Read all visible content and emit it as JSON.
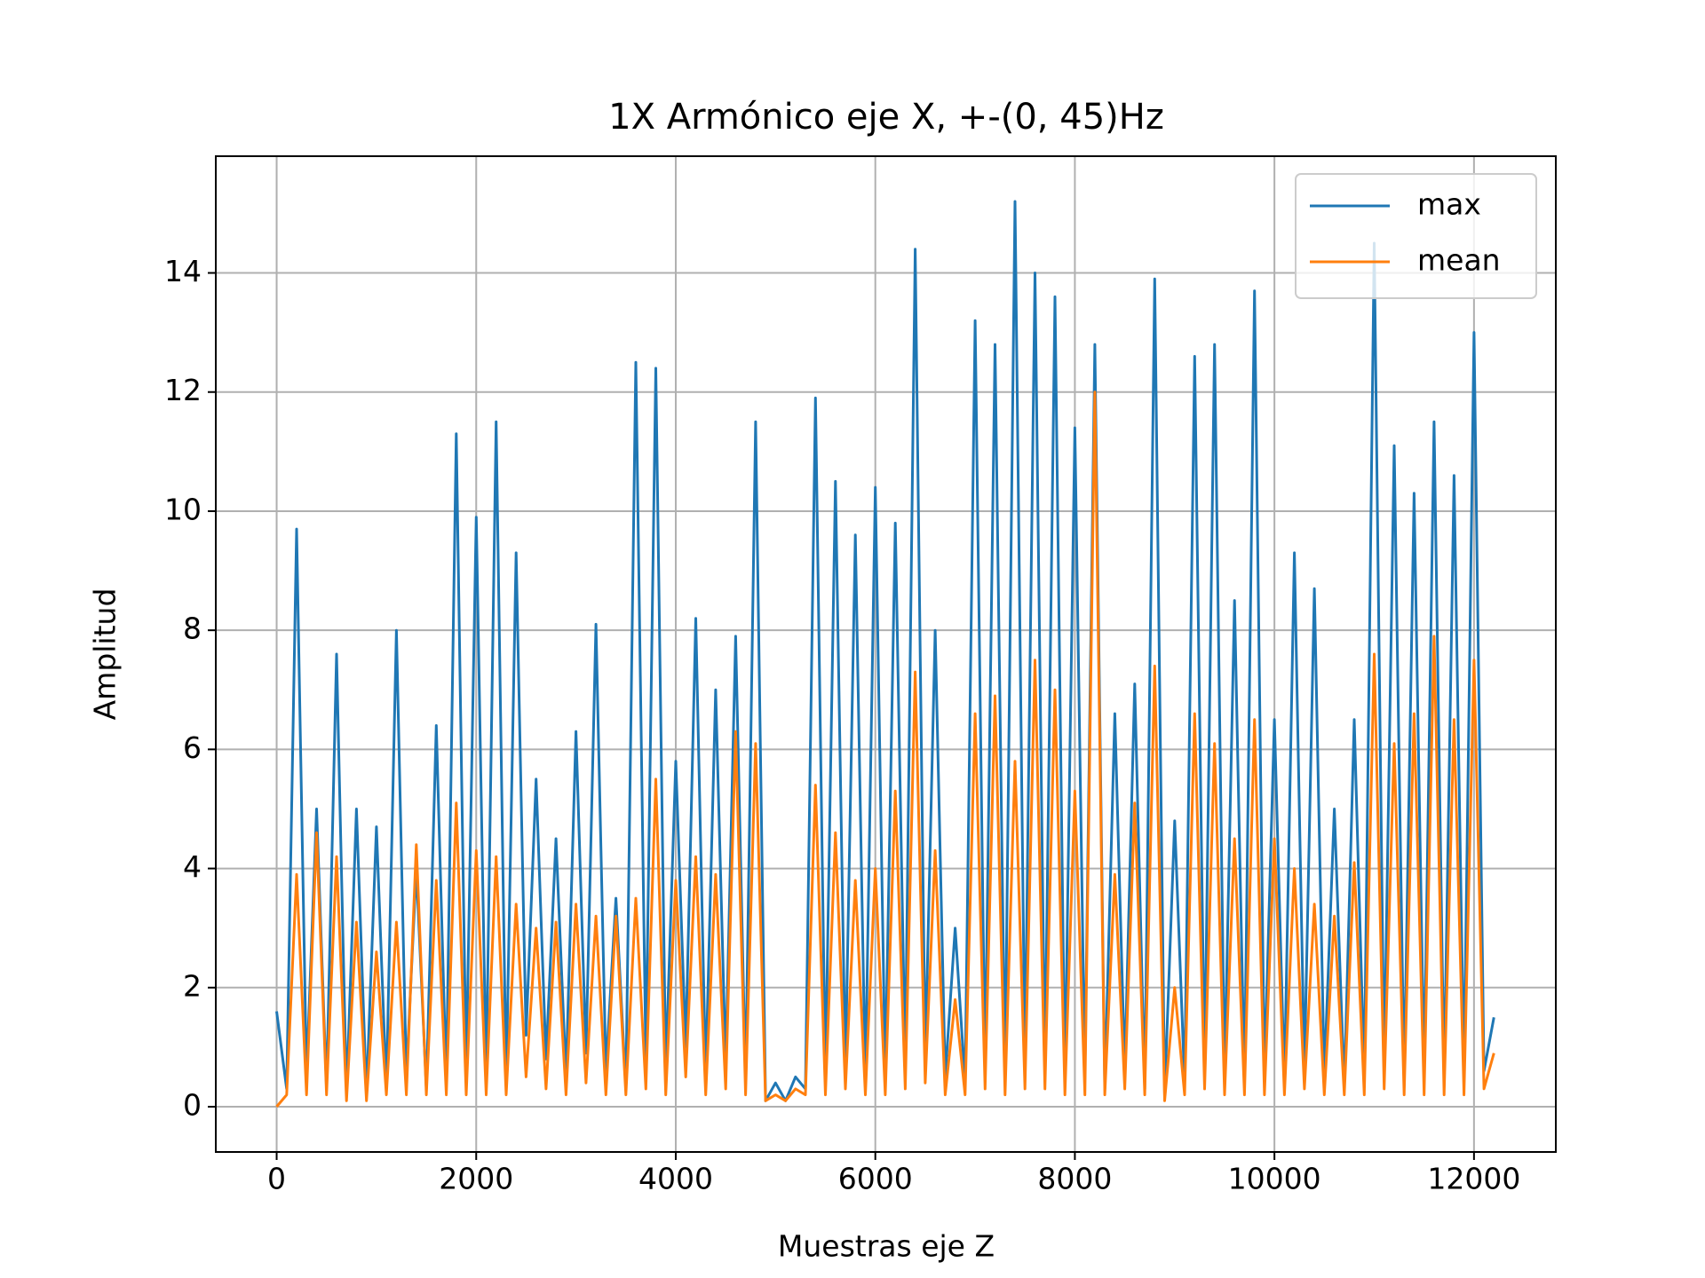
{
  "chart_data": {
    "type": "line",
    "title": "1X Armónico eje X, +-(0, 45)Hz",
    "xlabel": "Muestras eje Z",
    "ylabel": "Amplitud",
    "x": [
      0,
      100,
      200,
      300,
      400,
      500,
      600,
      700,
      800,
      900,
      1000,
      1100,
      1200,
      1300,
      1400,
      1500,
      1600,
      1700,
      1800,
      1900,
      2000,
      2100,
      2200,
      2300,
      2400,
      2500,
      2600,
      2700,
      2800,
      2900,
      3000,
      3100,
      3200,
      3300,
      3400,
      3500,
      3600,
      3700,
      3800,
      3900,
      4000,
      4100,
      4200,
      4300,
      4400,
      4500,
      4600,
      4700,
      4800,
      4900,
      5000,
      5100,
      5200,
      5300,
      5400,
      5500,
      5600,
      5700,
      5800,
      5900,
      6000,
      6100,
      6200,
      6300,
      6400,
      6500,
      6600,
      6700,
      6800,
      6900,
      7000,
      7100,
      7200,
      7300,
      7400,
      7500,
      7600,
      7700,
      7800,
      7900,
      8000,
      8100,
      8200,
      8300,
      8400,
      8500,
      8600,
      8700,
      8800,
      8900,
      9000,
      9100,
      9200,
      9300,
      9400,
      9500,
      9600,
      9700,
      9800,
      9900,
      10000,
      10100,
      10200,
      10300,
      10400,
      10500,
      10600,
      10700,
      10800,
      10900,
      11000,
      11100,
      11200,
      11300,
      11400,
      11500,
      11600,
      11700,
      11800,
      11900,
      12000,
      12100,
      12200
    ],
    "series": [
      {
        "name": "max",
        "color": "#1f77b4",
        "values": [
          1.6,
          0.3,
          9.7,
          0.5,
          5,
          0.3,
          7.6,
          0.2,
          5,
          0.2,
          4.7,
          0.3,
          8,
          0.5,
          4,
          0.3,
          6.4,
          0.4,
          11.3,
          0.6,
          9.9,
          0.5,
          11.5,
          0.4,
          9.3,
          1.2,
          5.5,
          0.8,
          4.5,
          0.5,
          6.3,
          0.9,
          8.1,
          0.6,
          3.5,
          0.3,
          12.5,
          0.8,
          12.4,
          0.6,
          5.8,
          1.0,
          8.2,
          0.5,
          7,
          0.7,
          7.9,
          0.4,
          11.5,
          0.1,
          0.4,
          0.1,
          0.5,
          0.3,
          11.9,
          0.5,
          10.5,
          0.6,
          9.6,
          0.4,
          10.4,
          0.5,
          9.8,
          0.7,
          14.4,
          0.8,
          8,
          0.5,
          3,
          0.4,
          13.2,
          0.6,
          12.8,
          0.5,
          15.2,
          0.7,
          14,
          0.6,
          13.6,
          0.4,
          11.4,
          0.5,
          12.8,
          0.3,
          6.6,
          0.6,
          7.1,
          0.3,
          13.9,
          0.2,
          4.8,
          0.4,
          12.6,
          0.6,
          12.8,
          0.5,
          8.5,
          0.4,
          13.7,
          0.5,
          6.5,
          0.4,
          9.3,
          0.6,
          8.7,
          0.5,
          5,
          0.3,
          6.5,
          0.5,
          14.5,
          0.6,
          11.1,
          0.4,
          10.3,
          0.5,
          11.5,
          0.4,
          10.6,
          0.5,
          13,
          0.6,
          1.5
        ]
      },
      {
        "name": "mean",
        "color": "#ff7f0e",
        "values": [
          0,
          0.2,
          3.9,
          0.2,
          4.6,
          0.2,
          4.2,
          0.1,
          3.1,
          0.1,
          2.6,
          0.2,
          3.1,
          0.2,
          4.4,
          0.2,
          3.8,
          0.2,
          5.1,
          0.2,
          4.3,
          0.2,
          4.2,
          0.2,
          3.4,
          0.5,
          3.0,
          0.3,
          3.1,
          0.2,
          3.4,
          0.4,
          3.2,
          0.2,
          3.2,
          0.2,
          3.5,
          0.3,
          5.5,
          0.2,
          3.8,
          0.5,
          4.2,
          0.2,
          3.9,
          0.3,
          6.3,
          0.2,
          6.1,
          0.1,
          0.2,
          0.1,
          0.3,
          0.2,
          5.4,
          0.2,
          4.6,
          0.3,
          3.8,
          0.2,
          4.0,
          0.2,
          5.3,
          0.3,
          7.3,
          0.4,
          4.3,
          0.2,
          1.8,
          0.2,
          6.6,
          0.3,
          6.9,
          0.2,
          5.8,
          0.3,
          7.5,
          0.3,
          7.0,
          0.2,
          5.3,
          0.2,
          12.0,
          0.2,
          3.9,
          0.3,
          5.1,
          0.2,
          7.4,
          0.1,
          2.0,
          0.2,
          6.6,
          0.3,
          6.1,
          0.2,
          4.5,
          0.2,
          6.5,
          0.2,
          4.5,
          0.2,
          4.0,
          0.3,
          3.4,
          0.2,
          3.2,
          0.2,
          4.1,
          0.2,
          7.6,
          0.3,
          6.1,
          0.2,
          6.6,
          0.2,
          7.9,
          0.2,
          6.5,
          0.2,
          7.5,
          0.3,
          0.9
        ]
      }
    ],
    "xlim": [
      -610,
      12820
    ],
    "ylim": [
      -0.76,
      15.96
    ],
    "xticks": [
      0,
      2000,
      4000,
      6000,
      8000,
      10000,
      12000
    ],
    "yticks": [
      0,
      2,
      4,
      6,
      8,
      10,
      12,
      14
    ],
    "grid": true,
    "legend": "upper right"
  }
}
